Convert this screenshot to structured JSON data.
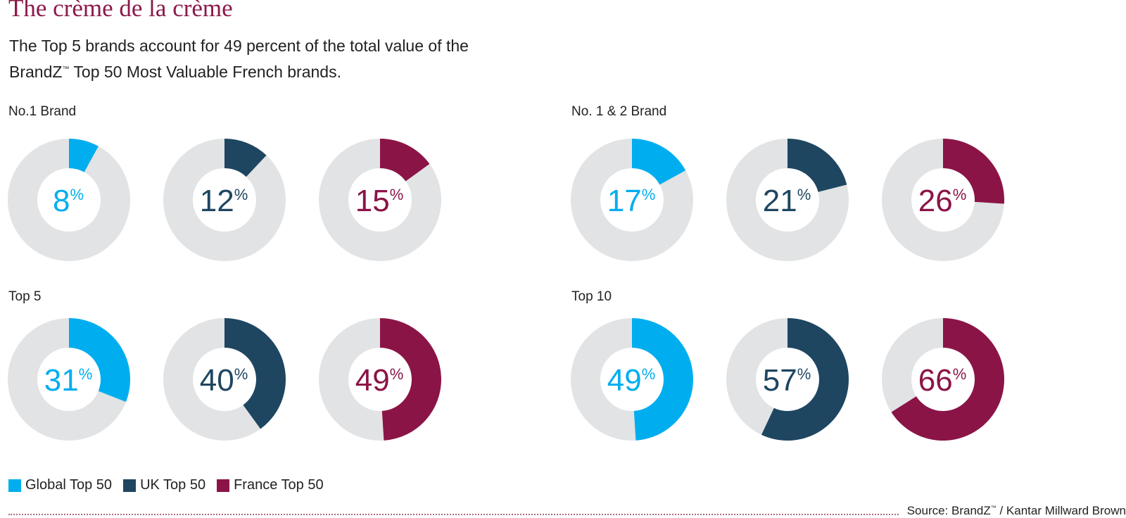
{
  "title": "The crème de la crème",
  "subtitle_line1": "The Top 5 brands account for 49 percent of the total value of the",
  "subtitle_line2a": "BrandZ",
  "subtitle_tm": "™",
  "subtitle_line2b": " Top 50 Most Valuable French brands.",
  "colors": {
    "global": "#00aeef",
    "uk": "#1e4661",
    "france": "#8b1447",
    "track": "#e2e3e4",
    "title": "#8b1a4a"
  },
  "chart_data": {
    "type": "pie",
    "series_names": [
      "Global Top 50",
      "UK Top 50",
      "France Top 50"
    ],
    "groups": [
      {
        "label": "No.1 Brand",
        "values": [
          8,
          12,
          15
        ]
      },
      {
        "label": "No. 1 & 2 Brand",
        "values": [
          17,
          21,
          26
        ]
      },
      {
        "label": "Top 5",
        "values": [
          31,
          40,
          49
        ]
      },
      {
        "label": "Top 10",
        "values": [
          49,
          57,
          66
        ]
      }
    ],
    "unit": "%"
  },
  "legend": [
    {
      "label": "Global Top 50",
      "color": "#00aeef"
    },
    {
      "label": "UK Top 50",
      "color": "#1e4661"
    },
    {
      "label": "France Top 50",
      "color": "#8b1447"
    }
  ],
  "source_a": "Source: BrandZ",
  "source_tm": "™",
  "source_b": " / Kantar Millward Brown"
}
